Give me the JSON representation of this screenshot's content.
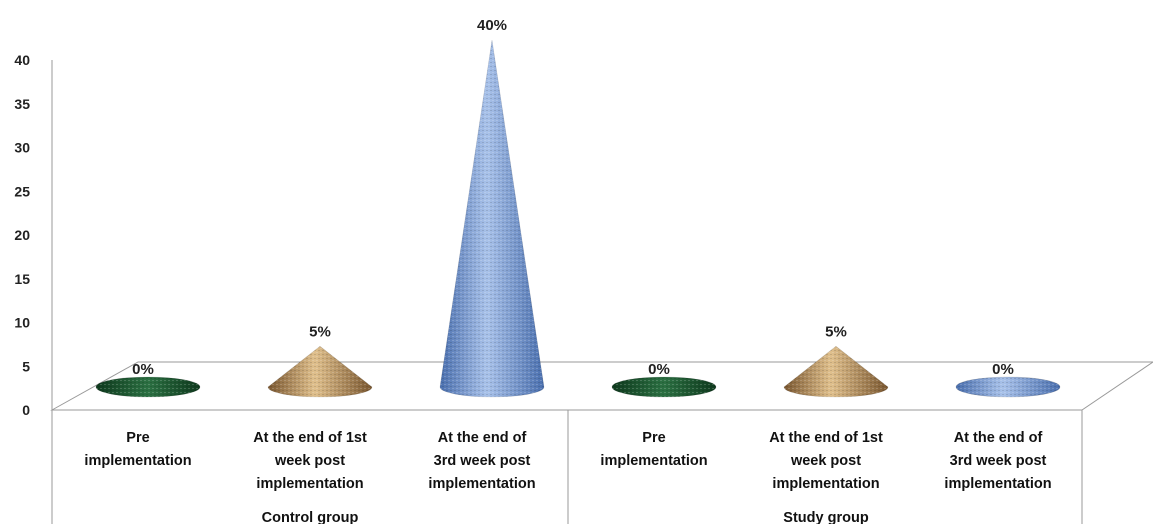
{
  "chart_data": {
    "type": "bar",
    "style": "3d-cone",
    "y_ticks": [
      "0",
      "5",
      "10",
      "15",
      "20",
      "25",
      "30",
      "35",
      "40"
    ],
    "ylim": [
      0,
      40
    ],
    "grid": false,
    "legend": "none",
    "groups": [
      {
        "name": "Control group",
        "categories": [
          {
            "lines": [
              "Pre",
              "implementation"
            ],
            "value": 0,
            "label": "0%",
            "color": "#1e5a32"
          },
          {
            "lines": [
              "At the end of 1st",
              "week post",
              "implementation"
            ],
            "value": 5,
            "label": "5%",
            "color": "#b58b57"
          },
          {
            "lines": [
              "At the end of",
              "3rd week post",
              "implementation"
            ],
            "value": 40,
            "label": "40%",
            "color": "#6f93cc"
          }
        ]
      },
      {
        "name": "Study group",
        "categories": [
          {
            "lines": [
              "Pre",
              "implementation"
            ],
            "value": 0,
            "label": "0%",
            "color": "#1e5a32"
          },
          {
            "lines": [
              "At the end of 1st",
              "week post",
              "implementation"
            ],
            "value": 5,
            "label": "5%",
            "color": "#b58b57"
          },
          {
            "lines": [
              "At the end of",
              "3rd week post",
              "implementation"
            ],
            "value": 0,
            "label": "0%",
            "color": "#6f93cc"
          }
        ]
      }
    ]
  }
}
